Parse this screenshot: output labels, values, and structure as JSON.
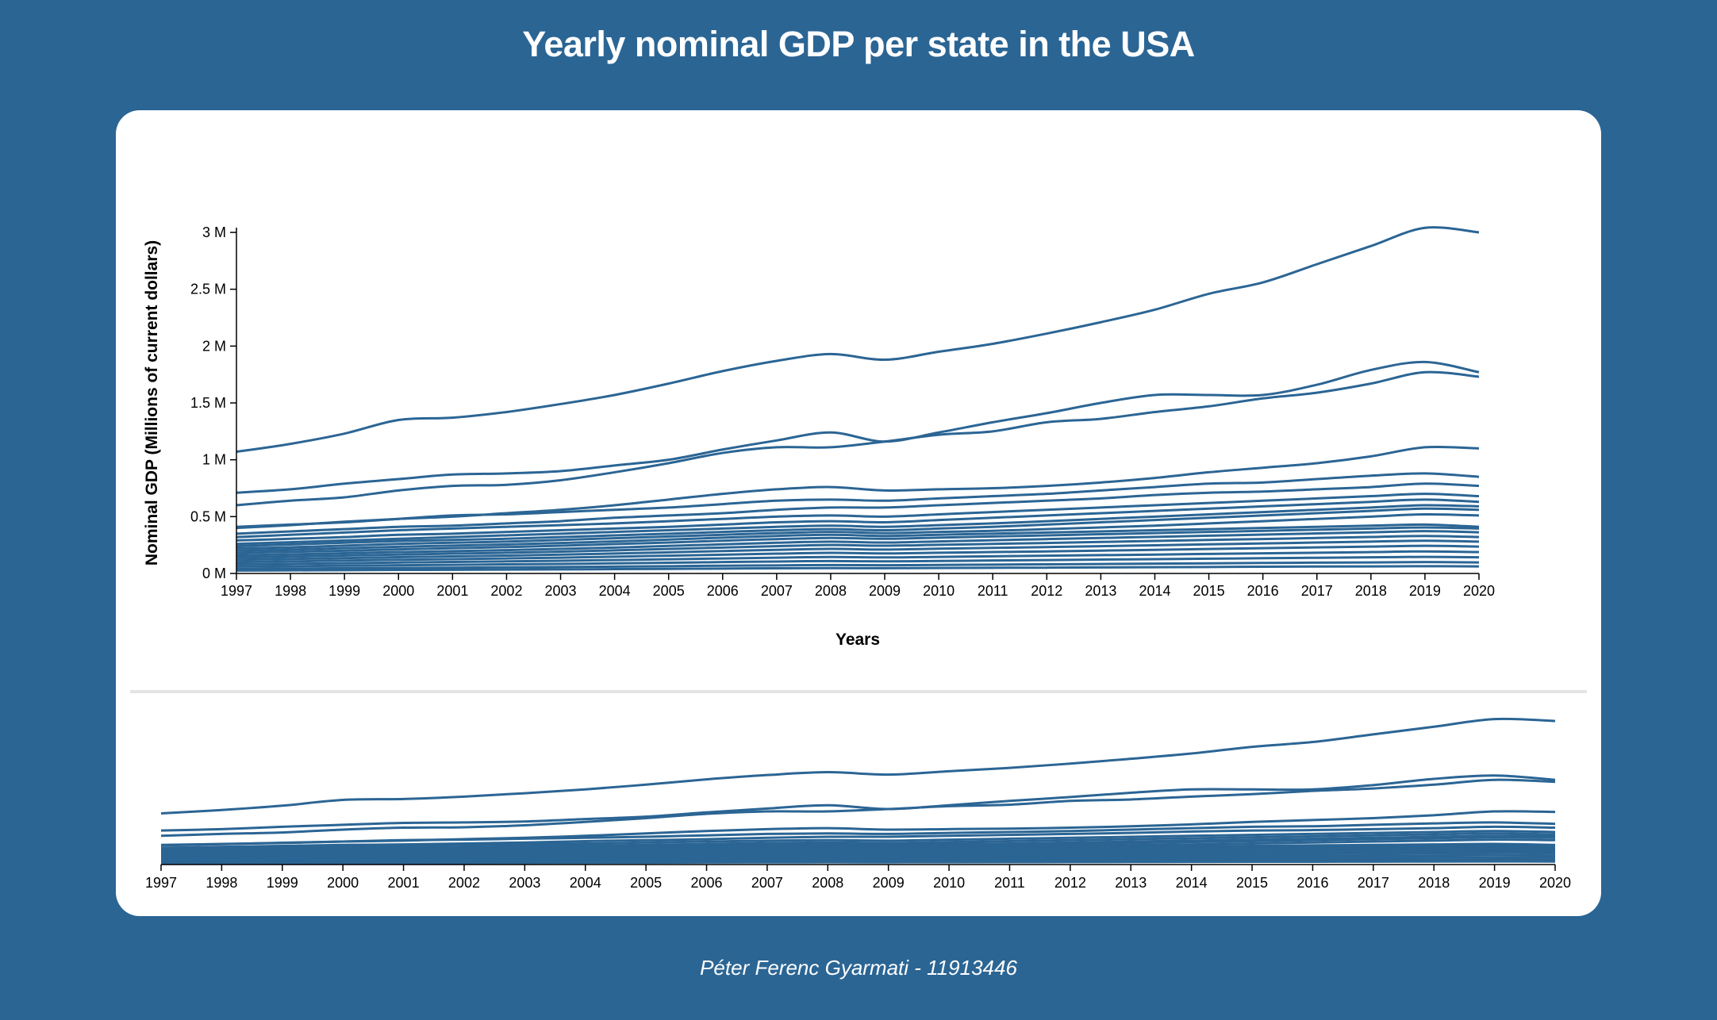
{
  "page": {
    "title": "Yearly nominal GDP per state in the USA",
    "footer": "Péter Ferenc Gyarmati - 11913446"
  },
  "colors": {
    "background": "#2b6594",
    "line": "#2b6594",
    "card": "#ffffff",
    "divider": "#e4e4e4"
  },
  "chart_data": [
    {
      "type": "line",
      "title": "Yearly nominal GDP per state in the USA",
      "xlabel": "Years",
      "ylabel": "Nominal GDP (Millions of current dollars)",
      "x": [
        1997,
        1998,
        1999,
        2000,
        2001,
        2002,
        2003,
        2004,
        2005,
        2006,
        2007,
        2008,
        2009,
        2010,
        2011,
        2012,
        2013,
        2014,
        2015,
        2016,
        2017,
        2018,
        2019,
        2020
      ],
      "xlim": [
        1997,
        2020
      ],
      "ylim": [
        0,
        3000000
      ],
      "y_ticks": [
        0,
        500000,
        1000000,
        1500000,
        2000000,
        2500000,
        3000000
      ],
      "y_tick_labels": [
        "0 M",
        "0.5 M",
        "1 M",
        "1.5 M",
        "2 M",
        "2.5 M",
        "3 M"
      ],
      "legend": "none",
      "grid": false,
      "series": [
        {
          "values": [
            1070000,
            1140000,
            1230000,
            1350000,
            1370000,
            1420000,
            1490000,
            1570000,
            1670000,
            1780000,
            1870000,
            1930000,
            1880000,
            1950000,
            2020000,
            2110000,
            2210000,
            2320000,
            2460000,
            2560000,
            2720000,
            2880000,
            3040000,
            3000000
          ]
        },
        {
          "values": [
            710000,
            740000,
            790000,
            830000,
            870000,
            880000,
            900000,
            950000,
            1000000,
            1090000,
            1170000,
            1240000,
            1160000,
            1240000,
            1330000,
            1410000,
            1500000,
            1570000,
            1570000,
            1570000,
            1660000,
            1790000,
            1860000,
            1770000
          ]
        },
        {
          "values": [
            600000,
            640000,
            670000,
            730000,
            770000,
            780000,
            820000,
            890000,
            970000,
            1060000,
            1110000,
            1110000,
            1160000,
            1220000,
            1250000,
            1330000,
            1360000,
            1420000,
            1470000,
            1540000,
            1590000,
            1670000,
            1770000,
            1730000
          ]
        },
        {
          "values": [
            400000,
            425000,
            455000,
            480000,
            500000,
            530000,
            560000,
            600000,
            650000,
            700000,
            740000,
            760000,
            730000,
            740000,
            750000,
            770000,
            800000,
            840000,
            890000,
            930000,
            970000,
            1030000,
            1110000,
            1100000
          ]
        },
        {
          "values": [
            410000,
            430000,
            450000,
            480000,
            510000,
            520000,
            540000,
            560000,
            580000,
            610000,
            640000,
            650000,
            640000,
            660000,
            680000,
            700000,
            730000,
            760000,
            790000,
            800000,
            830000,
            860000,
            880000,
            850000
          ]
        },
        {
          "values": [
            350000,
            370000,
            390000,
            410000,
            420000,
            440000,
            460000,
            490000,
            510000,
            530000,
            560000,
            580000,
            580000,
            600000,
            620000,
            640000,
            660000,
            690000,
            710000,
            720000,
            740000,
            760000,
            790000,
            770000
          ]
        },
        {
          "values": [
            320000,
            340000,
            360000,
            380000,
            395000,
            410000,
            425000,
            440000,
            460000,
            480000,
            500000,
            510000,
            500000,
            520000,
            540000,
            560000,
            580000,
            600000,
            620000,
            640000,
            660000,
            680000,
            700000,
            680000
          ]
        },
        {
          "values": [
            290000,
            305000,
            320000,
            340000,
            350000,
            365000,
            380000,
            395000,
            410000,
            430000,
            450000,
            460000,
            450000,
            470000,
            490000,
            510000,
            530000,
            550000,
            570000,
            590000,
            610000,
            630000,
            650000,
            630000
          ]
        },
        {
          "values": [
            260000,
            275000,
            290000,
            305000,
            320000,
            335000,
            350000,
            365000,
            380000,
            395000,
            410000,
            420000,
            410000,
            425000,
            440000,
            460000,
            480000,
            500000,
            520000,
            540000,
            560000,
            580000,
            600000,
            590000
          ]
        },
        {
          "values": [
            240000,
            255000,
            270000,
            285000,
            295000,
            305000,
            320000,
            335000,
            350000,
            365000,
            380000,
            390000,
            380000,
            395000,
            410000,
            430000,
            450000,
            470000,
            490000,
            510000,
            530000,
            550000,
            570000,
            560000
          ]
        },
        {
          "values": [
            220000,
            230000,
            245000,
            260000,
            270000,
            280000,
            295000,
            310000,
            325000,
            340000,
            355000,
            365000,
            355000,
            365000,
            375000,
            390000,
            405000,
            420000,
            440000,
            460000,
            480000,
            500000,
            520000,
            510000
          ]
        },
        {
          "values": [
            200000,
            210000,
            222000,
            235000,
            245000,
            255000,
            268000,
            282000,
            298000,
            315000,
            330000,
            340000,
            330000,
            340000,
            350000,
            360000,
            370000,
            380000,
            390000,
            400000,
            410000,
            420000,
            430000,
            410000
          ]
        },
        {
          "values": [
            180000,
            190000,
            200000,
            212000,
            222000,
            232000,
            244000,
            258000,
            272000,
            288000,
            302000,
            312000,
            305000,
            315000,
            325000,
            335000,
            345000,
            355000,
            365000,
            375000,
            385000,
            395000,
            405000,
            395000
          ]
        },
        {
          "values": [
            160000,
            168000,
            178000,
            188000,
            196000,
            205000,
            216000,
            228000,
            242000,
            256000,
            270000,
            280000,
            272000,
            282000,
            292000,
            302000,
            312000,
            322000,
            332000,
            342000,
            352000,
            362000,
            372000,
            362000
          ]
        },
        {
          "values": [
            140000,
            148000,
            157000,
            166000,
            174000,
            182000,
            192000,
            203000,
            215000,
            228000,
            240000,
            250000,
            244000,
            252000,
            260000,
            268000,
            277000,
            286000,
            295000,
            303000,
            312000,
            321000,
            330000,
            320000
          ]
        },
        {
          "values": [
            120000,
            127000,
            135000,
            143000,
            150000,
            157000,
            166000,
            175000,
            186000,
            197000,
            208000,
            216000,
            210000,
            218000,
            225000,
            232000,
            240000,
            248000,
            256000,
            264000,
            272000,
            280000,
            288000,
            280000
          ]
        },
        {
          "values": [
            100000,
            106000,
            113000,
            120000,
            126000,
            132000,
            139000,
            147000,
            156000,
            165000,
            174000,
            181000,
            176000,
            182000,
            188000,
            194000,
            201000,
            208000,
            215000,
            222000,
            229000,
            236000,
            243000,
            236000
          ]
        },
        {
          "values": [
            80000,
            85000,
            90000,
            96000,
            101000,
            106000,
            112000,
            118000,
            125000,
            132000,
            139000,
            145000,
            141000,
            146000,
            151000,
            156000,
            161000,
            166000,
            172000,
            177000,
            182000,
            188000,
            194000,
            188000
          ]
        },
        {
          "values": [
            60000,
            64000,
            68000,
            72000,
            76000,
            80000,
            84000,
            89000,
            94000,
            100000,
            105000,
            109000,
            106000,
            110000,
            114000,
            118000,
            122000,
            126000,
            130000,
            134000,
            138000,
            142000,
            146000,
            142000
          ]
        },
        {
          "values": [
            40000,
            43000,
            46000,
            49000,
            51000,
            54000,
            57000,
            60000,
            64000,
            68000,
            71000,
            74000,
            72000,
            75000,
            78000,
            80000,
            83000,
            86000,
            89000,
            92000,
            95000,
            97000,
            100000,
            97000
          ]
        },
        {
          "values": [
            25000,
            27000,
            29000,
            31000,
            32000,
            34000,
            36000,
            38000,
            40000,
            43000,
            45000,
            47000,
            46000,
            48000,
            50000,
            51000,
            53000,
            55000,
            57000,
            59000,
            61000,
            62000,
            64000,
            62000
          ]
        }
      ]
    },
    {
      "type": "line",
      "description_role": "context / brush overview",
      "x": [
        1997,
        1998,
        1999,
        2000,
        2001,
        2002,
        2003,
        2004,
        2005,
        2006,
        2007,
        2008,
        2009,
        2010,
        2011,
        2012,
        2013,
        2014,
        2015,
        2016,
        2017,
        2018,
        2019,
        2020
      ],
      "xlim": [
        1997,
        2020
      ],
      "ylim": [
        0,
        3000000
      ],
      "legend": "none",
      "grid": false,
      "series_ref": "same as first chart"
    }
  ]
}
